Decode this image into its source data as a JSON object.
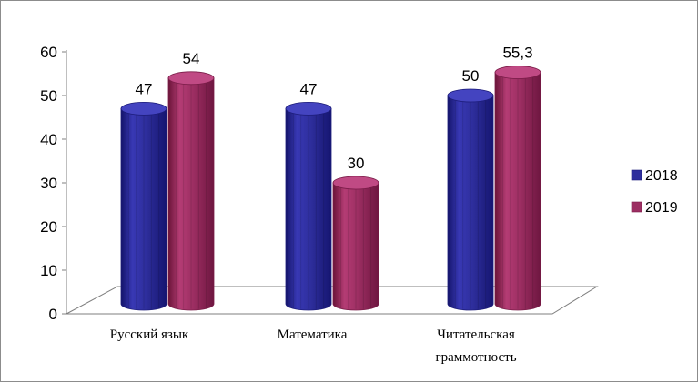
{
  "chart_data": {
    "type": "bar",
    "style": "3d-cylinder",
    "categories": [
      [
        "Русский язык"
      ],
      [
        "Математика"
      ],
      [
        "Читательская",
        "граммотность"
      ]
    ],
    "series": [
      {
        "name": "2018",
        "values": [
          47,
          47,
          50
        ],
        "labels": [
          "47",
          "47",
          "50"
        ],
        "color": "#2e2e9c"
      },
      {
        "name": "2019",
        "values": [
          54,
          30,
          55.3
        ],
        "labels": [
          "54",
          "30",
          "55,3"
        ],
        "color": "#9c2e62"
      }
    ],
    "ylim": [
      0,
      60
    ],
    "yticks": [
      "0",
      "10",
      "20",
      "30",
      "40",
      "50",
      "60"
    ],
    "grid": false,
    "legend": "right"
  }
}
